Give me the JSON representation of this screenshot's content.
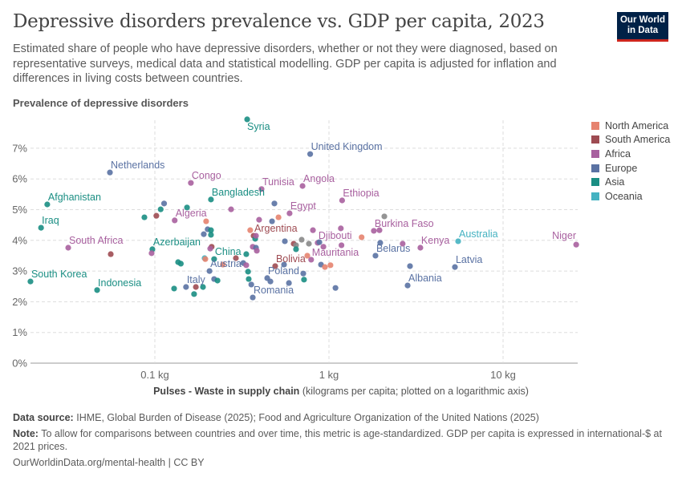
{
  "header": {
    "title": "Depressive disorders prevalence vs. GDP per capita, 2023",
    "subtitle": "Estimated share of people who have depressive disorders, whether or not they were diagnosed, based on representative surveys, medical data and statistical modelling. GDP per capita is adjusted for inflation and differences in living costs between countries.",
    "logo": "Our World in Data"
  },
  "legend": [
    {
      "label": "North America",
      "color": "#e6836f"
    },
    {
      "label": "South America",
      "color": "#9e4b52"
    },
    {
      "label": "Africa",
      "color": "#a8609f"
    },
    {
      "label": "Europe",
      "color": "#5a72a3"
    },
    {
      "label": "Asia",
      "color": "#1a8e83"
    },
    {
      "label": "Oceania",
      "color": "#45b2c1"
    }
  ],
  "footer": {
    "source_label": "Data source:",
    "source": "IHME, Global Burden of Disease (2025); Food and Agriculture Organization of the United Nations (2025)",
    "note_label": "Note:",
    "note": "To allow for comparisons between countries and over time, this metric is age-standardized. GDP per capita is expressed in international-$ at 2021 prices.",
    "url": "OurWorldinData.org/mental-health | CC BY"
  },
  "chart_data": {
    "type": "scatter",
    "title": "Depressive disorders prevalence vs. GDP per capita, 2023",
    "ylabel": "Prevalence of depressive disorders",
    "xlabel_bold": "Pulses - Waste in supply chain",
    "xlabel_rest": "(kilograms per capita; plotted on a logarithmic axis)",
    "x_scale": "log",
    "xlim": [
      0.017,
      27
    ],
    "ylim": [
      0,
      8
    ],
    "x_ticks": [
      {
        "v": 0.1,
        "label": "0.1 kg"
      },
      {
        "v": 1,
        "label": "1 kg"
      },
      {
        "v": 10,
        "label": "10 kg"
      }
    ],
    "y_ticks": [
      {
        "v": 0,
        "label": "0%"
      },
      {
        "v": 1,
        "label": "1%"
      },
      {
        "v": 2,
        "label": "2%"
      },
      {
        "v": 3,
        "label": "3%"
      },
      {
        "v": 4,
        "label": "4%"
      },
      {
        "v": 5,
        "label": "5%"
      },
      {
        "v": 6,
        "label": "6%"
      },
      {
        "v": 7,
        "label": "7%"
      }
    ],
    "grid": true,
    "legend_position": "right",
    "points": [
      {
        "name": "Syria",
        "x": 0.339,
        "y": 7.94,
        "region": "Asia"
      },
      {
        "name": "United Kingdom",
        "x": 0.78,
        "y": 6.81,
        "region": "Europe"
      },
      {
        "name": "Netherlands",
        "x": 0.0552,
        "y": 6.21,
        "region": "Europe"
      },
      {
        "name": "Congo",
        "x": 0.161,
        "y": 5.87,
        "region": "Africa"
      },
      {
        "name": "Tunisia",
        "x": 0.41,
        "y": 5.67,
        "region": "Africa"
      },
      {
        "name": "Angola",
        "x": 0.705,
        "y": 5.77,
        "region": "Africa"
      },
      {
        "name": "Ethiopia",
        "x": 1.19,
        "y": 5.3,
        "region": "Africa"
      },
      {
        "name": "Afghanistan",
        "x": 0.0241,
        "y": 5.17,
        "region": "Asia"
      },
      {
        "name": "Bangladesh",
        "x": 0.21,
        "y": 5.33,
        "region": "Asia"
      },
      {
        "name": "Egypt",
        "x": 0.594,
        "y": 4.88,
        "region": "Africa"
      },
      {
        "name": "Algeria",
        "x": 0.13,
        "y": 4.65,
        "region": "Africa"
      },
      {
        "name": "Iraq",
        "x": 0.0222,
        "y": 4.41,
        "region": "Asia"
      },
      {
        "name": "Argentina",
        "x": 0.369,
        "y": 4.15,
        "region": "South America"
      },
      {
        "name": "Burkina Faso",
        "x": 1.81,
        "y": 4.31,
        "region": "Africa"
      },
      {
        "name": "Djibouti",
        "x": 0.861,
        "y": 3.92,
        "region": "Africa"
      },
      {
        "name": "Australia",
        "x": 5.52,
        "y": 3.97,
        "region": "Oceania"
      },
      {
        "name": "Kenya",
        "x": 3.35,
        "y": 3.76,
        "region": "Africa"
      },
      {
        "name": "Niger",
        "x": 26.3,
        "y": 3.86,
        "region": "Africa"
      },
      {
        "name": "South Africa",
        "x": 0.0318,
        "y": 3.76,
        "region": "Africa"
      },
      {
        "name": "Azerbaijan",
        "x": 0.0968,
        "y": 3.71,
        "region": "Asia"
      },
      {
        "name": "Belarus",
        "x": 1.85,
        "y": 3.5,
        "region": "Europe"
      },
      {
        "name": "Mauritania",
        "x": 0.79,
        "y": 3.37,
        "region": "Africa"
      },
      {
        "name": "China",
        "x": 0.219,
        "y": 3.39,
        "region": "Asia"
      },
      {
        "name": "Bolivia",
        "x": 0.491,
        "y": 3.16,
        "region": "South America"
      },
      {
        "name": "Latvia",
        "x": 5.29,
        "y": 3.13,
        "region": "Europe"
      },
      {
        "name": "Austria",
        "x": 0.206,
        "y": 3.0,
        "region": "Europe"
      },
      {
        "name": "South Korea",
        "x": 0.0193,
        "y": 2.66,
        "region": "Asia"
      },
      {
        "name": "Poland",
        "x": 0.442,
        "y": 2.77,
        "region": "Europe"
      },
      {
        "name": "Italy",
        "x": 0.151,
        "y": 2.48,
        "region": "Europe"
      },
      {
        "name": "Indonesia",
        "x": 0.0466,
        "y": 2.38,
        "region": "Asia"
      },
      {
        "name": "Albania",
        "x": 2.83,
        "y": 2.53,
        "region": "Europe"
      },
      {
        "name": "Romania",
        "x": 0.365,
        "y": 2.14,
        "region": "Europe"
      },
      {
        "x": 0.0558,
        "y": 3.55,
        "region": "South America"
      },
      {
        "x": 0.0958,
        "y": 3.58,
        "region": "Africa"
      },
      {
        "x": 0.0871,
        "y": 4.75,
        "region": "Asia"
      },
      {
        "x": 0.102,
        "y": 4.8,
        "region": "South America"
      },
      {
        "x": 0.108,
        "y": 5.01,
        "region": "Asia"
      },
      {
        "x": 0.113,
        "y": 5.2,
        "region": "Europe"
      },
      {
        "x": 0.153,
        "y": 5.07,
        "region": "Asia"
      },
      {
        "x": 0.136,
        "y": 3.29,
        "region": "Asia"
      },
      {
        "x": 0.141,
        "y": 3.24,
        "region": "Asia"
      },
      {
        "x": 0.129,
        "y": 2.43,
        "region": "Asia"
      },
      {
        "x": 0.168,
        "y": 2.25,
        "region": "Asia"
      },
      {
        "x": 0.172,
        "y": 2.48,
        "region": "South America"
      },
      {
        "x": 0.189,
        "y": 2.48,
        "region": "Asia"
      },
      {
        "x": 0.197,
        "y": 4.62,
        "region": "North America"
      },
      {
        "x": 0.201,
        "y": 4.36,
        "region": "Europe"
      },
      {
        "x": 0.21,
        "y": 4.33,
        "region": "Asia"
      },
      {
        "x": 0.21,
        "y": 4.18,
        "region": "Asia"
      },
      {
        "x": 0.191,
        "y": 4.2,
        "region": "Europe"
      },
      {
        "x": 0.193,
        "y": 3.42,
        "region": "Oceania"
      },
      {
        "x": 0.195,
        "y": 3.39,
        "region": "North America"
      },
      {
        "x": 0.212,
        "y": 3.79,
        "region": "South America"
      },
      {
        "x": 0.208,
        "y": 3.73,
        "region": "Africa"
      },
      {
        "x": 0.219,
        "y": 2.74,
        "region": "Europe"
      },
      {
        "x": 0.229,
        "y": 2.69,
        "region": "Asia"
      },
      {
        "x": 0.246,
        "y": 3.21,
        "region": "North America"
      },
      {
        "x": 0.292,
        "y": 3.42,
        "region": "South America"
      },
      {
        "x": 0.274,
        "y": 5.01,
        "region": "Africa"
      },
      {
        "x": 0.322,
        "y": 3.26,
        "region": "Europe"
      },
      {
        "x": 0.335,
        "y": 3.19,
        "region": "Africa"
      },
      {
        "x": 0.335,
        "y": 3.55,
        "region": "Asia"
      },
      {
        "x": 0.343,
        "y": 2.98,
        "region": "Asia"
      },
      {
        "x": 0.346,
        "y": 2.74,
        "region": "Asia"
      },
      {
        "x": 0.358,
        "y": 2.56,
        "region": "Europe"
      },
      {
        "x": 0.365,
        "y": 3.79,
        "region": "Africa"
      },
      {
        "x": 0.381,
        "y": 3.76,
        "region": "Europe"
      },
      {
        "x": 0.385,
        "y": 3.66,
        "region": "Africa"
      },
      {
        "x": 0.377,
        "y": 4.05,
        "region": "Asia"
      },
      {
        "x": 0.381,
        "y": 4.15,
        "region": "Africa"
      },
      {
        "x": 0.397,
        "y": 4.67,
        "region": "Africa"
      },
      {
        "x": 0.471,
        "y": 4.62,
        "region": "Europe"
      },
      {
        "x": 0.513,
        "y": 4.75,
        "region": "North America"
      },
      {
        "x": 0.486,
        "y": 5.2,
        "region": "Europe"
      },
      {
        "x": 0.353,
        "y": 4.33,
        "region": "North America"
      },
      {
        "x": 0.558,
        "y": 3.97,
        "region": "Europe"
      },
      {
        "x": 0.627,
        "y": 3.89,
        "region": "South America"
      },
      {
        "x": 0.647,
        "y": 3.84,
        "region": null
      },
      {
        "x": 0.647,
        "y": 3.71,
        "region": "Asia"
      },
      {
        "x": 0.697,
        "y": 4.02,
        "region": null
      },
      {
        "x": 0.767,
        "y": 3.89,
        "region": null
      },
      {
        "x": 0.751,
        "y": 3.5,
        "region": "North America"
      },
      {
        "x": 0.552,
        "y": 3.21,
        "region": "Europe"
      },
      {
        "x": 0.589,
        "y": 2.61,
        "region": "Europe"
      },
      {
        "x": 0.461,
        "y": 2.66,
        "region": "Europe"
      },
      {
        "x": 0.719,
        "y": 2.72,
        "region": "Asia"
      },
      {
        "x": 0.712,
        "y": 2.92,
        "region": "Europe"
      },
      {
        "x": 0.9,
        "y": 3.21,
        "region": "Europe"
      },
      {
        "x": 0.948,
        "y": 3.13,
        "region": "North America"
      },
      {
        "x": 1.02,
        "y": 3.19,
        "region": "North America"
      },
      {
        "x": 1.09,
        "y": 2.45,
        "region": "Europe"
      },
      {
        "x": 0.809,
        "y": 4.33,
        "region": "Africa"
      },
      {
        "x": 1.17,
        "y": 4.39,
        "region": "Africa"
      },
      {
        "x": 1.18,
        "y": 3.84,
        "region": "Africa"
      },
      {
        "x": 0.929,
        "y": 3.79,
        "region": "Africa"
      },
      {
        "x": 0.881,
        "y": 3.94,
        "region": "Europe"
      },
      {
        "x": 2.08,
        "y": 4.78,
        "region": null
      },
      {
        "x": 1.95,
        "y": 4.33,
        "region": "Africa"
      },
      {
        "x": 1.97,
        "y": 3.92,
        "region": "Europe"
      },
      {
        "x": 2.65,
        "y": 3.89,
        "region": "Africa"
      },
      {
        "x": 2.92,
        "y": 3.16,
        "region": "Europe"
      },
      {
        "x": 1.54,
        "y": 4.1,
        "region": "North America"
      }
    ]
  }
}
